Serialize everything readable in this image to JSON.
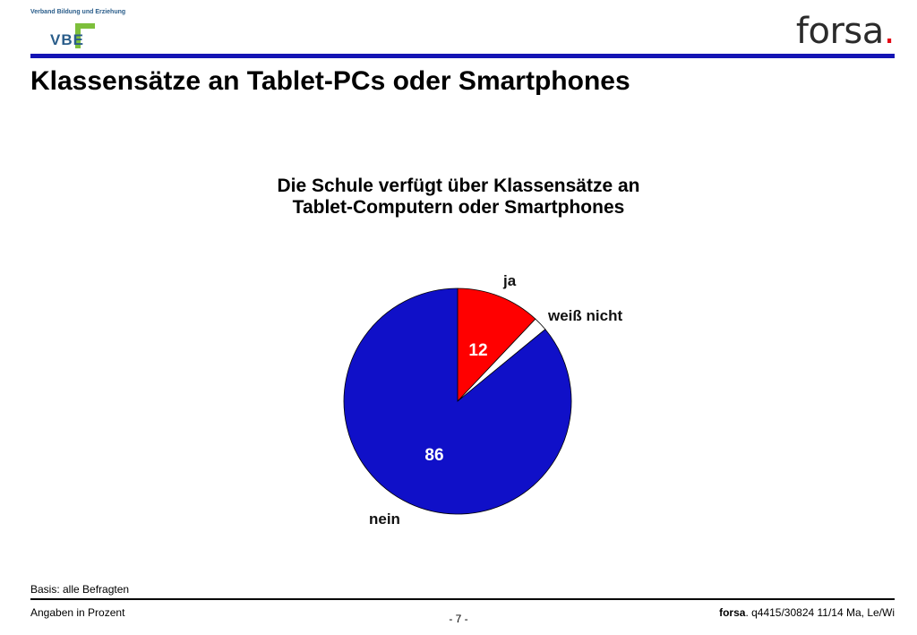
{
  "header": {
    "vbe_small": "Verband Bildung und Erziehung",
    "vbe_letters": "VBE",
    "forsa_brand": "forsa",
    "forsa_dot": ".",
    "title": "Klassensätze an Tablet-PCs oder Smartphones"
  },
  "chart_data": {
    "type": "pie",
    "title_lines": [
      "Die Schule verfügt über Klassensätze an",
      "Tablet-Computern oder Smartphones"
    ],
    "slices": [
      {
        "label": "ja",
        "value": 12,
        "value_label": "12",
        "color": "#ff0000"
      },
      {
        "label": "weiß nicht",
        "value": 2,
        "value_label": "",
        "color": "#ffffff"
      },
      {
        "label": "nein",
        "value": 86,
        "value_label": "86",
        "color": "#1010c8"
      }
    ]
  },
  "footer": {
    "basis": "Basis: alle Befragten",
    "unit_note": "Angaben in Prozent",
    "page": "- 7 -",
    "ref_brand": "forsa",
    "ref_rest": ". q4415/30824 11/14 Ma, Le/Wi"
  }
}
